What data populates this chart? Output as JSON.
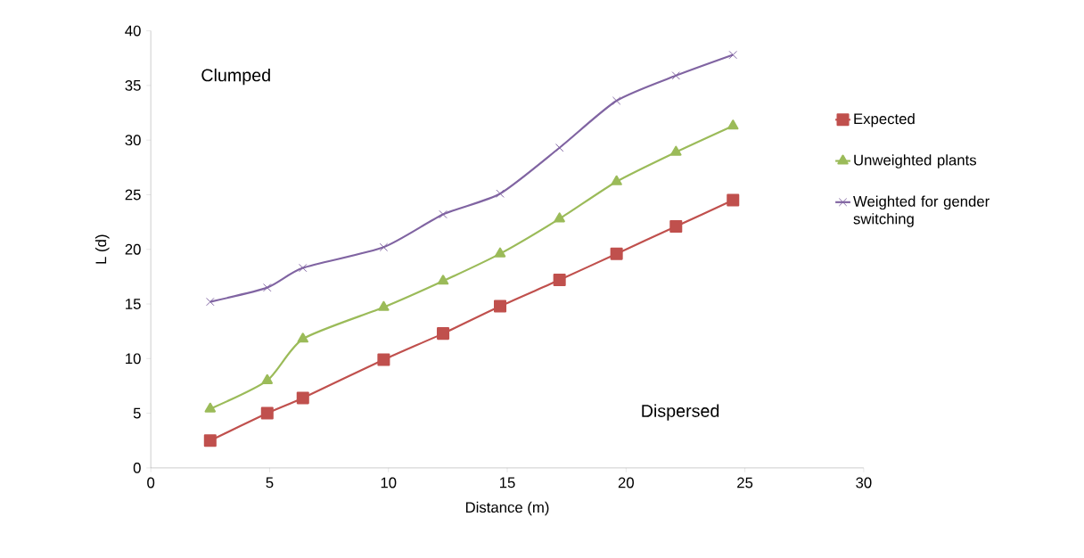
{
  "chart_data": {
    "type": "line",
    "xlabel": "Distance (m)",
    "ylabel": "L (d)",
    "xlim": [
      0,
      30
    ],
    "xticks": [
      0,
      5,
      10,
      15,
      20,
      25,
      30
    ],
    "ylim": [
      0,
      40
    ],
    "yticks": [
      0,
      5,
      10,
      15,
      20,
      25,
      30,
      35,
      40
    ],
    "grid": false,
    "legend": "right",
    "series": [
      {
        "name": "Expected",
        "color": "#c0504d",
        "marker": "square",
        "x": [
          2.5,
          4.9,
          6.4,
          9.8,
          12.3,
          14.7,
          17.2,
          19.6,
          22.1,
          24.5
        ],
        "values": [
          2.5,
          5.0,
          6.4,
          9.9,
          12.3,
          14.8,
          17.2,
          19.6,
          22.1,
          24.5
        ]
      },
      {
        "name": "Unweighted plants",
        "color": "#9bbb59",
        "marker": "triangle",
        "x": [
          2.5,
          4.9,
          6.4,
          9.8,
          12.3,
          14.7,
          17.2,
          19.6,
          22.1,
          24.5
        ],
        "values": [
          5.4,
          8.0,
          11.8,
          14.7,
          17.1,
          19.6,
          22.8,
          26.2,
          28.9,
          31.3
        ]
      },
      {
        "name": "Weighted for gender switching",
        "color": "#8064a2",
        "marker": "cross",
        "x": [
          2.5,
          4.9,
          6.4,
          9.8,
          12.3,
          14.7,
          17.2,
          19.6,
          22.1,
          24.5
        ],
        "values": [
          15.2,
          16.5,
          18.3,
          20.2,
          23.2,
          25.1,
          29.3,
          33.6,
          35.9,
          37.8
        ]
      }
    ],
    "annotations": [
      "Clumped",
      "Dispersed"
    ]
  }
}
